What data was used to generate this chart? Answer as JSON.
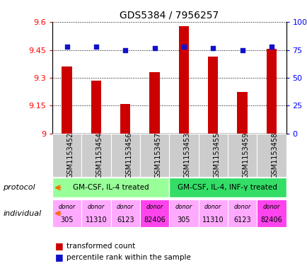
{
  "title": "GDS5384 / 7956257",
  "samples": [
    "GSM1153452",
    "GSM1153454",
    "GSM1153456",
    "GSM1153457",
    "GSM1153453",
    "GSM1153455",
    "GSM1153459",
    "GSM1153458"
  ],
  "bar_values": [
    9.36,
    9.285,
    9.16,
    9.33,
    9.578,
    9.415,
    9.225,
    9.455
  ],
  "dot_values": [
    78,
    78,
    75,
    77,
    78,
    77,
    75,
    78
  ],
  "ylim_left": [
    9.0,
    9.6
  ],
  "ylim_right": [
    0,
    100
  ],
  "yticks_left": [
    9.0,
    9.15,
    9.3,
    9.45,
    9.6
  ],
  "yticks_right": [
    0,
    25,
    50,
    75,
    100
  ],
  "ytick_labels_left": [
    "9",
    "9.15",
    "9.3",
    "9.45",
    "9.6"
  ],
  "ytick_labels_right": [
    "0",
    "25",
    "50",
    "75",
    "100%"
  ],
  "bar_color": "#cc0000",
  "dot_color": "#1111cc",
  "bar_bottom": 9.0,
  "protocol_labels": [
    "GM-CSF, IL-4 treated",
    "GM-CSF, IL-4, INF-γ treated"
  ],
  "protocol_colors": [
    "#99ff99",
    "#33dd66"
  ],
  "individual_colors_base": "#ffaaff",
  "individual_colors_highlight": "#ff44ee",
  "sample_bg_color": "#cccccc",
  "legend_bar_label": "transformed count",
  "legend_dot_label": "percentile rank within the sample",
  "protocol_label": "protocol",
  "individual_label": "individual",
  "arrow_color": "#ff6600",
  "individual_donors": [
    "305",
    "11310",
    "6123",
    "82406",
    "305",
    "11310",
    "6123",
    "82406"
  ],
  "individual_highlight": [
    false,
    false,
    false,
    true,
    false,
    false,
    false,
    true
  ]
}
